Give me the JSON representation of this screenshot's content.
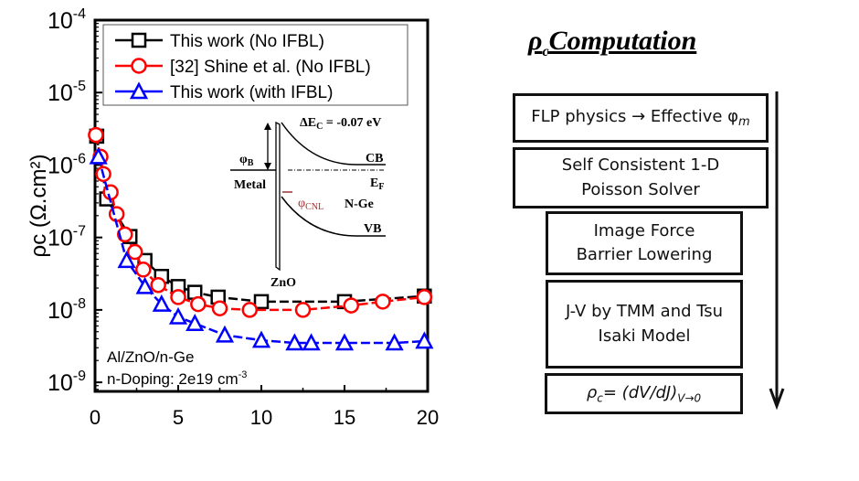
{
  "chart_data": {
    "type": "scatter",
    "ylabel": "ρc (Ω.cm²)",
    "yscale": "log",
    "ylim": [
      7.5e-10,
      0.0001
    ],
    "xlim": [
      0,
      20
    ],
    "xticks": [
      "0",
      "5",
      "10",
      "15",
      "20"
    ],
    "yticks": [
      {
        "base": "10",
        "exp": "-4"
      },
      {
        "base": "10",
        "exp": "-5"
      },
      {
        "base": "10",
        "exp": "-6"
      },
      {
        "base": "10",
        "exp": "-7"
      },
      {
        "base": "10",
        "exp": "-8"
      },
      {
        "base": "10",
        "exp": "-9"
      }
    ],
    "legend_position": "top-left",
    "series": [
      {
        "name": "This work (No IFBL)",
        "color": "#000000",
        "marker": "square",
        "x": [
          0.1,
          0.7,
          2.1,
          3.0,
          4.0,
          5.0,
          6.0,
          7.4,
          10,
          15,
          19.8
        ],
        "y": [
          2.5e-06,
          3.4e-07,
          1.03e-07,
          4.8e-08,
          2.9e-08,
          2.1e-08,
          1.75e-08,
          1.5e-08,
          1.3e-08,
          1.3e-08,
          1.55e-08
        ]
      },
      {
        "name_ref": "[32]",
        "name": "Shine et al. (No IFBL)",
        "color": "#ff0000",
        "marker": "circle",
        "x": [
          0.05,
          0.33,
          0.5,
          0.94,
          1.3,
          1.8,
          2.4,
          2.9,
          3.8,
          5.0,
          6.2,
          7.5,
          9.3,
          12.5,
          15.4,
          17.3,
          19.8
        ],
        "y": [
          2.6e-06,
          1.3e-06,
          7.5e-07,
          4.2e-07,
          2.1e-07,
          1.1e-07,
          6.3e-08,
          3.6e-08,
          2.2e-08,
          1.5e-08,
          1.2e-08,
          1.05e-08,
          1e-08,
          1e-08,
          1.15e-08,
          1.3e-08,
          1.5e-08
        ]
      },
      {
        "name": "This work (with IFBL)",
        "color": "#0000ff",
        "marker": "triangle",
        "x": [
          0.2,
          1.9,
          3.0,
          4.0,
          5.0,
          6.0,
          7.8,
          10,
          12,
          13,
          15,
          18,
          19.8
        ],
        "y": [
          1.3e-06,
          4.8e-08,
          2.1e-08,
          1.2e-08,
          8e-09,
          6.5e-09,
          4.5e-09,
          3.8e-09,
          3.5e-09,
          3.5e-09,
          3.5e-09,
          3.5e-09,
          3.7e-09
        ]
      }
    ],
    "annotations": [
      "Al/ZnO/n-Ge",
      "n-Doping: 2e19 cm",
      "-3"
    ],
    "inset": {
      "dEc": "ΔE",
      "dEc_sub": "C",
      "dEc_val": " = -0.07 eV",
      "phiB": "φ",
      "phiB_sub": "B",
      "metal": "Metal",
      "cb": "CB",
      "ef": "E",
      "ef_sub": "F",
      "phicnl": "φ",
      "phicnl_sub": "CNL",
      "nge": "N-Ge",
      "vb": "VB",
      "zno": "ZnO"
    }
  },
  "flow": {
    "title": "ρ",
    "title_sub": "c",
    "title_rest": "Computation",
    "steps": [
      [
        "FLP  physics → Effective φ",
        "m"
      ],
      [
        "Self Consistent  1-D",
        "Poisson Solver"
      ],
      [
        "Image Force",
        "Barrier Lowering"
      ],
      [
        "J-V by TMM and Tsu",
        "Isaki Model"
      ],
      [
        "ρ",
        "c",
        "= (dV/dJ)",
        "V→0"
      ]
    ]
  }
}
